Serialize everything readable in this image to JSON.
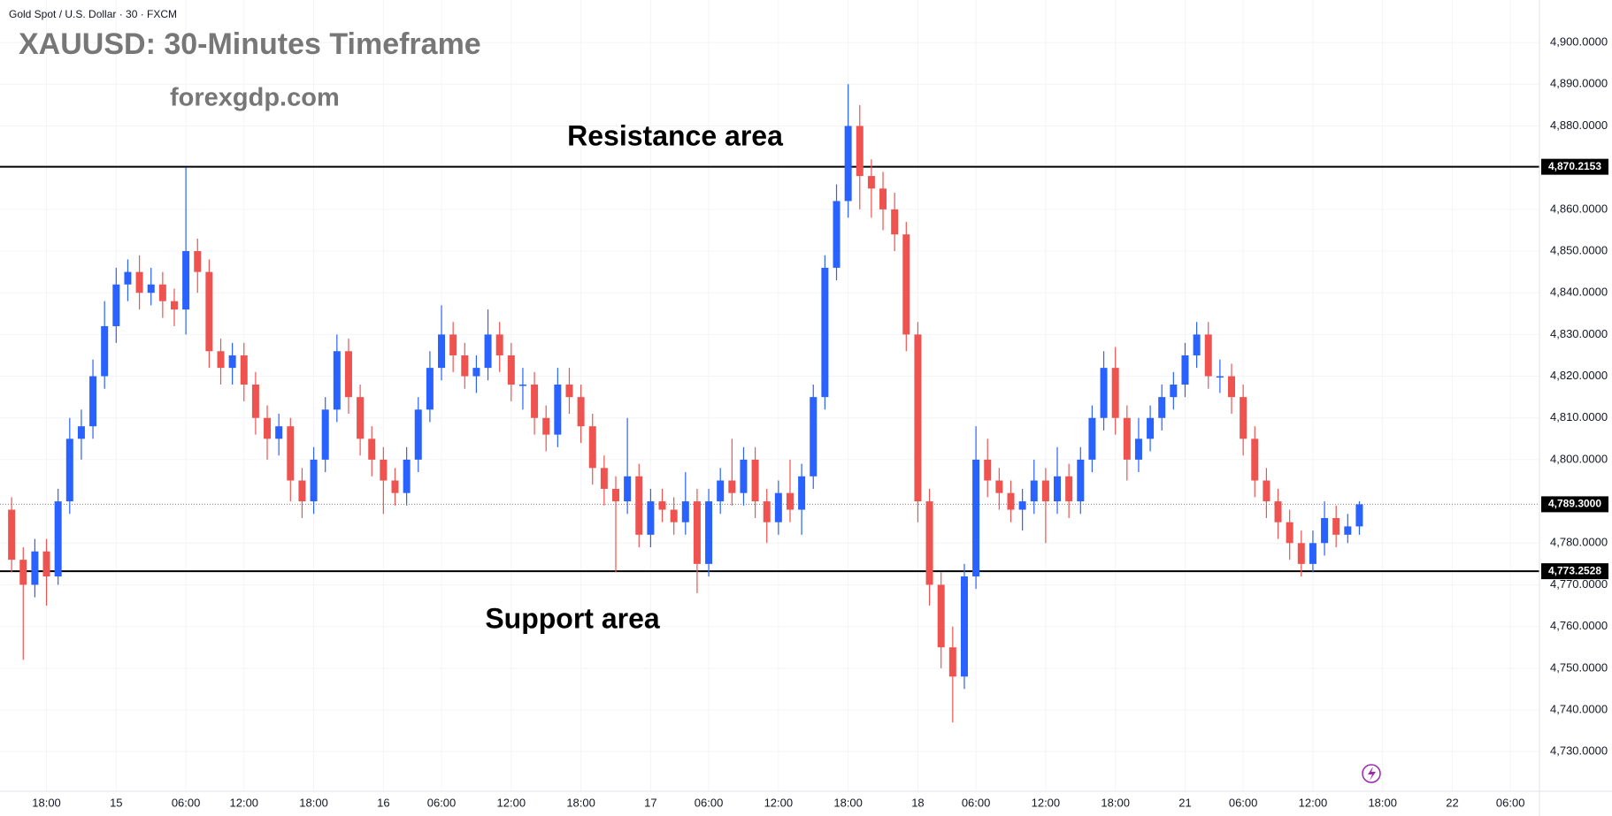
{
  "chart_data": {
    "type": "candlestick",
    "header": "Gold Spot / U.S. Dollar · 30 · FXCM",
    "title": "XAUUSD: 30-Minutes Timeframe",
    "subtitle": "forexgdp.com",
    "annotations": [
      "Resistance area",
      "Support area"
    ],
    "up_color": "#2962ff",
    "down_color": "#ef5350",
    "xlim": [
      14,
      146.5
    ],
    "ylim": [
      4720.5,
      4910.2
    ],
    "xticks": [
      {
        "value": 18,
        "label": "18:00"
      },
      {
        "value": 24,
        "label": "15"
      },
      {
        "value": 30,
        "label": "06:00"
      },
      {
        "value": 35,
        "label": "12:00"
      },
      {
        "value": 41,
        "label": "18:00"
      },
      {
        "value": 47,
        "label": "16"
      },
      {
        "value": 52,
        "label": "06:00"
      },
      {
        "value": 58,
        "label": "12:00"
      },
      {
        "value": 64,
        "label": "18:00"
      },
      {
        "value": 70,
        "label": "17"
      },
      {
        "value": 75,
        "label": "06:00"
      },
      {
        "value": 81,
        "label": "12:00"
      },
      {
        "value": 87,
        "label": "18:00"
      },
      {
        "value": 93,
        "label": "18"
      },
      {
        "value": 98,
        "label": "06:00"
      },
      {
        "value": 104,
        "label": "12:00"
      },
      {
        "value": 110,
        "label": "18:00"
      },
      {
        "value": 116,
        "label": "21"
      },
      {
        "value": 121,
        "label": "06:00"
      },
      {
        "value": 127,
        "label": "12:00"
      },
      {
        "value": 133,
        "label": "18:00"
      },
      {
        "value": 139,
        "label": "22"
      },
      {
        "value": 144,
        "label": "06:00"
      }
    ],
    "yticks": [
      {
        "value": 4730,
        "label": "4,730.0000"
      },
      {
        "value": 4740,
        "label": "4,740.0000"
      },
      {
        "value": 4750,
        "label": "4,750.0000"
      },
      {
        "value": 4760,
        "label": "4,760.0000"
      },
      {
        "value": 4770,
        "label": "4,770.0000"
      },
      {
        "value": 4780,
        "label": "4,780.0000"
      },
      {
        "value": 4800,
        "label": "4,800.0000"
      },
      {
        "value": 4810,
        "label": "4,810.0000"
      },
      {
        "value": 4820,
        "label": "4,820.0000"
      },
      {
        "value": 4830,
        "label": "4,830.0000"
      },
      {
        "value": 4840,
        "label": "4,840.0000"
      },
      {
        "value": 4850,
        "label": "4,850.0000"
      },
      {
        "value": 4860,
        "label": "4,860.0000"
      },
      {
        "value": 4880,
        "label": "4,880.0000"
      },
      {
        "value": 4890,
        "label": "4,890.0000"
      },
      {
        "value": 4900,
        "label": "4,900.0000"
      }
    ],
    "levels": [
      {
        "value": 4870.2153,
        "label": "4,870.2153",
        "line_style": "solid"
      },
      {
        "value": 4773.2528,
        "label": "4,773.2528",
        "line_style": "solid"
      },
      {
        "value": 4789.3,
        "label": "4,789.3000",
        "line_style": "dotted"
      }
    ],
    "x": [
      15,
      16,
      17,
      18,
      19,
      20,
      21,
      22,
      23,
      24,
      25,
      26,
      27,
      28,
      29,
      30,
      31,
      32,
      33,
      34,
      35,
      36,
      37,
      38,
      39,
      40,
      41,
      42,
      43,
      44,
      45,
      46,
      47,
      48,
      49,
      50,
      51,
      52,
      53,
      54,
      55,
      56,
      57,
      58,
      59,
      60,
      61,
      62,
      63,
      64,
      65,
      66,
      67,
      68,
      69,
      70,
      71,
      72,
      73,
      74,
      75,
      76,
      77,
      78,
      79,
      80,
      81,
      82,
      83,
      84,
      85,
      86,
      87,
      88,
      89,
      90,
      91,
      92,
      93,
      94,
      95,
      96,
      97,
      98,
      99,
      100,
      101,
      102,
      103,
      104,
      105,
      106,
      107,
      108,
      109,
      110,
      111,
      112,
      113,
      114,
      115,
      116,
      117,
      118,
      119,
      120,
      121,
      122,
      123,
      124,
      125,
      126,
      127,
      128,
      129,
      130,
      131
    ],
    "open": [
      4788,
      4776,
      4770,
      4778,
      4772,
      4790,
      4805,
      4808,
      4820,
      4832,
      4842,
      4845,
      4840,
      4842,
      4838,
      4836,
      4850,
      4845,
      4826,
      4822,
      4825,
      4818,
      4810,
      4805,
      4808,
      4795,
      4790,
      4800,
      4812,
      4826,
      4815,
      4805,
      4800,
      4795,
      4792,
      4800,
      4812,
      4822,
      4830,
      4825,
      4820,
      4822,
      4830,
      4825,
      4818,
      4818,
      4810,
      4806,
      4818,
      4815,
      4808,
      4798,
      4793,
      4790,
      4796,
      4782,
      4790,
      4788,
      4785,
      4790,
      4775,
      4790,
      4795,
      4792,
      4800,
      4790,
      4785,
      4792,
      4788,
      4796,
      4815,
      4846,
      4862,
      4880,
      4868,
      4865,
      4860,
      4854,
      4830,
      4790,
      4770,
      4755,
      4748,
      4772,
      4800,
      4795,
      4792,
      4788,
      4790,
      4795,
      4790,
      4796,
      4790,
      4800,
      4810,
      4822,
      4810,
      4800,
      4805,
      4810,
      4815,
      4818,
      4825,
      4830,
      4820,
      4820,
      4815,
      4805,
      4795,
      4790,
      4785,
      4780,
      4775,
      4780,
      4786,
      4782,
      4784
    ],
    "high": [
      4791,
      4779,
      4781,
      4781,
      4793,
      4810,
      4812,
      4824,
      4838,
      4846,
      4848,
      4849,
      4846,
      4845,
      4841,
      4870,
      4853,
      4848,
      4829,
      4828,
      4828,
      4821,
      4813,
      4811,
      4810,
      4798,
      4803,
      4815,
      4830,
      4829,
      4818,
      4808,
      4803,
      4798,
      4803,
      4815,
      4826,
      4837,
      4833,
      4828,
      4825,
      4836,
      4833,
      4828,
      4822,
      4821,
      4813,
      4822,
      4822,
      4818,
      4811,
      4801,
      4796,
      4810,
      4799,
      4793,
      4793,
      4791,
      4797,
      4793,
      4793,
      4798,
      4805,
      4803,
      4803,
      4793,
      4795,
      4800,
      4799,
      4818,
      4849,
      4866,
      4890,
      4885,
      4872,
      4869,
      4864,
      4857,
      4833,
      4793,
      4773,
      4760,
      4775,
      4808,
      4805,
      4798,
      4795,
      4793,
      4800,
      4798,
      4803,
      4799,
      4803,
      4813,
      4826,
      4827,
      4813,
      4810,
      4813,
      4818,
      4821,
      4828,
      4833,
      4833,
      4824,
      4823,
      4818,
      4808,
      4798,
      4793,
      4788,
      4783,
      4783,
      4790,
      4789,
      4787,
      4790
    ],
    "low": [
      4773,
      4752,
      4767,
      4765,
      4770,
      4787,
      4800,
      4805,
      4817,
      4828,
      4838,
      4836,
      4837,
      4834,
      4832,
      4830,
      4840,
      4822,
      4818,
      4818,
      4814,
      4806,
      4800,
      4801,
      4790,
      4786,
      4787,
      4797,
      4809,
      4811,
      4801,
      4796,
      4787,
      4789,
      4789,
      4797,
      4809,
      4819,
      4821,
      4817,
      4816,
      4819,
      4821,
      4814,
      4812,
      4806,
      4802,
      4803,
      4811,
      4804,
      4794,
      4789,
      4773,
      4787,
      4779,
      4779,
      4785,
      4782,
      4782,
      4768,
      4772,
      4787,
      4789,
      4789,
      4786,
      4780,
      4782,
      4785,
      4782,
      4793,
      4812,
      4843,
      4858,
      4860,
      4858,
      4855,
      4850,
      4826,
      4785,
      4765,
      4750,
      4737,
      4745,
      4769,
      4791,
      4788,
      4785,
      4783,
      4787,
      4780,
      4787,
      4786,
      4787,
      4797,
      4807,
      4806,
      4795,
      4797,
      4802,
      4807,
      4812,
      4815,
      4822,
      4817,
      4816,
      4811,
      4801,
      4791,
      4786,
      4781,
      4776,
      4772,
      4773,
      4777,
      4779,
      4780,
      4782
    ],
    "close": [
      4776,
      4770,
      4778,
      4772,
      4790,
      4805,
      4808,
      4820,
      4832,
      4842,
      4845,
      4840,
      4842,
      4838,
      4836,
      4850,
      4845,
      4826,
      4822,
      4825,
      4818,
      4810,
      4805,
      4808,
      4795,
      4790,
      4800,
      4812,
      4826,
      4815,
      4805,
      4800,
      4795,
      4792,
      4800,
      4812,
      4822,
      4830,
      4825,
      4820,
      4822,
      4830,
      4825,
      4818,
      4818,
      4810,
      4806,
      4818,
      4815,
      4808,
      4798,
      4793,
      4790,
      4796,
      4782,
      4790,
      4788,
      4785,
      4790,
      4775,
      4790,
      4795,
      4792,
      4800,
      4790,
      4785,
      4792,
      4788,
      4796,
      4815,
      4846,
      4862,
      4880,
      4868,
      4865,
      4860,
      4854,
      4830,
      4790,
      4770,
      4755,
      4748,
      4772,
      4800,
      4795,
      4792,
      4788,
      4790,
      4795,
      4790,
      4796,
      4790,
      4800,
      4810,
      4822,
      4810,
      4800,
      4805,
      4810,
      4815,
      4818,
      4825,
      4830,
      4820,
      4820,
      4815,
      4805,
      4795,
      4790,
      4785,
      4780,
      4775,
      4780,
      4786,
      4782,
      4784,
      4789.3
    ]
  }
}
